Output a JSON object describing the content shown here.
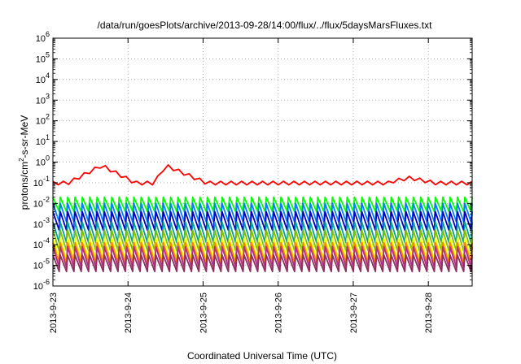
{
  "chart_data": {
    "type": "line",
    "title": "/data/run/goesPlots/archive/2013-09-28/14:00/flux/../flux/5daysMarsFluxes.txt",
    "xlabel": "Coordinated Universal Time (UTC)",
    "ylabel_main": "protons/cm",
    "ylabel_sup": "2",
    "ylabel_tail": "-s-sr-MeV",
    "y_scale": "log",
    "ylim_exp": [
      -6,
      6
    ],
    "y_ticks": [
      {
        "base": "10",
        "exp": "6"
      },
      {
        "base": "10",
        "exp": "5"
      },
      {
        "base": "10",
        "exp": "4"
      },
      {
        "base": "10",
        "exp": "3"
      },
      {
        "base": "10",
        "exp": "2"
      },
      {
        "base": "10",
        "exp": "1"
      },
      {
        "base": "10",
        "exp": "0"
      },
      {
        "base": "10",
        "exp": "-1"
      },
      {
        "base": "10",
        "exp": "-2"
      },
      {
        "base": "10",
        "exp": "-3"
      },
      {
        "base": "10",
        "exp": "-4"
      },
      {
        "base": "10",
        "exp": "-5"
      },
      {
        "base": "10",
        "exp": "-6"
      }
    ],
    "x_range_days": [
      "2013-9-23 00:00",
      "2013-9-28 14:00"
    ],
    "x_ticks": [
      "2013-9-23",
      "2013-9-24",
      "2013-9-25",
      "2013-9-26",
      "2013-9-27",
      "2013-9-28"
    ],
    "grid": true,
    "series": [
      {
        "color": "#ff0000",
        "peak_exp": -0.7,
        "trough_exp": -1.1,
        "events": true
      },
      {
        "color": "#00ff00",
        "peak_exp": -1.7,
        "trough_exp": -2.4
      },
      {
        "color": "#0080ff",
        "peak_exp": -2.0,
        "trough_exp": -2.9
      },
      {
        "color": "#0000c0",
        "peak_exp": -2.4,
        "trough_exp": -3.3
      },
      {
        "color": "#00a0a0",
        "peak_exp": -2.9,
        "trough_exp": -3.9
      },
      {
        "color": "#80c000",
        "peak_exp": -3.3,
        "trough_exp": -4.3
      },
      {
        "color": "#ffff00",
        "peak_exp": -3.7,
        "trough_exp": -4.7
      },
      {
        "color": "#ff8000",
        "peak_exp": -3.9,
        "trough_exp": -4.9
      },
      {
        "color": "#b0308a",
        "peak_exp": -4.1,
        "trough_exp": -5.1
      },
      {
        "color": "#903060",
        "peak_exp": -4.5,
        "trough_exp": -5.3
      }
    ]
  }
}
